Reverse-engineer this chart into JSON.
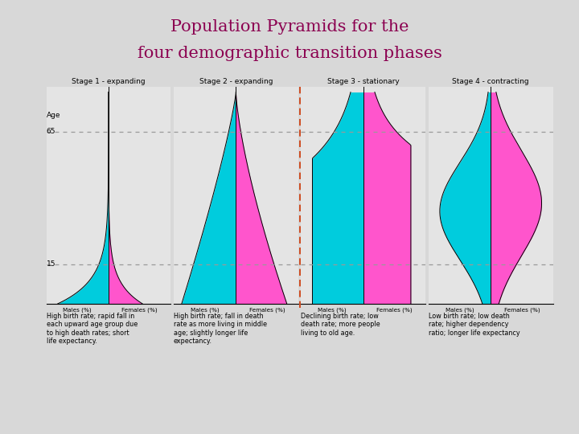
{
  "title_line1": "Population Pyramids for the",
  "title_line2": "four demographic transition phases",
  "title_color": "#8B0050",
  "bg_color": "#D8D8D8",
  "chart_bg": "#E4E4E4",
  "cyan_color": "#00CCDD",
  "pink_color": "#FF55CC",
  "stages": [
    "Stage 1 - expanding",
    "Stage 2 - expanding",
    "Stage 3 - stationary",
    "Stage 4 - contracting"
  ],
  "descriptions": [
    "High birth rate; rapid fall in\neach upward age group due\nto high death rates; short\nlife expectancy.",
    "High birth rate; fall in death\nrate as more living in middle\nage; slightly longer life\nexpectancy.",
    "Declining birth rate; low\ndeath rate; more people\nliving to old age.",
    "Low birth rate; low death\nrate; higher dependency\nratio; longer life expectancy"
  ],
  "separator_color": "#CC3300",
  "dashed_line_color": "#999999",
  "xlabel_males": "Males (%)",
  "xlabel_females": "Females (%)"
}
